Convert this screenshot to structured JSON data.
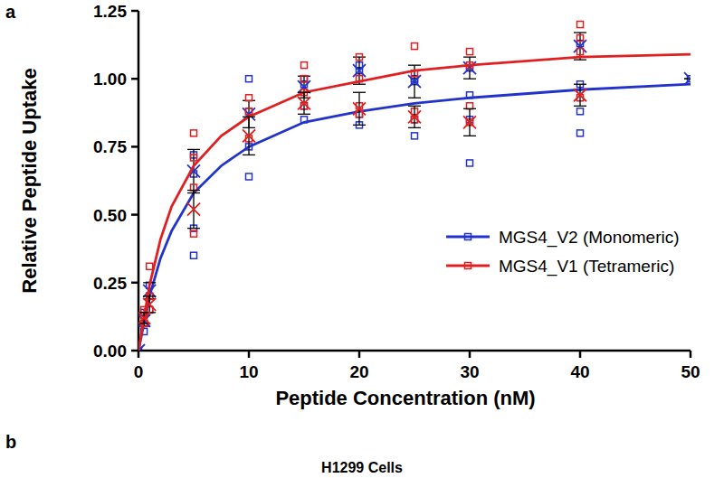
{
  "chart_data": {
    "type": "scatter",
    "x_label": "Peptide Concentration (nM)",
    "y_label": "Relative Peptide Uptake",
    "annotations": [
      "a",
      "b",
      "H1299 Cells"
    ],
    "xlim": [
      0,
      50
    ],
    "xticks": [
      0,
      10,
      20,
      30,
      40,
      50
    ],
    "ylim": [
      0,
      1.25
    ],
    "yticks": [
      {
        "value": 0,
        "label": "0.00"
      },
      {
        "value": 0.25,
        "label": "0.25"
      },
      {
        "value": 0.5,
        "label": "0.50"
      },
      {
        "value": 0.75,
        "label": "0.75"
      },
      {
        "value": 1.0,
        "label": "1.00"
      },
      {
        "value": 1.25,
        "label": "1.25"
      }
    ],
    "legend": "lower right",
    "grid": false,
    "series": [
      {
        "name": "MGS4_V2 (Monomeric)",
        "color": "#2233cc",
        "marker": "square",
        "line_style": "solid",
        "x": [
          0,
          0.5,
          1,
          5,
          10,
          15,
          20,
          25,
          30,
          40,
          50
        ],
        "values": [
          0.0,
          0.11,
          0.22,
          0.66,
          0.87,
          0.97,
          1.03,
          0.99,
          1.04,
          1.12,
          1.0
        ],
        "errors": [
          0.0,
          0.02,
          0.03,
          0.08,
          0.05,
          0.04,
          0.05,
          0.06,
          0.04,
          0.05,
          0.0
        ],
        "replicates": [
          [
            0.0
          ],
          [
            0.07,
            0.1,
            0.14
          ],
          [
            0.15,
            0.2,
            0.24
          ],
          [
            0.35,
            0.45,
            0.65,
            0.72
          ],
          [
            0.64,
            0.75,
            0.88,
            1.0
          ],
          [
            0.85,
            0.9,
            0.98,
            1.0
          ],
          [
            0.83,
            0.87,
            1.03,
            1.05
          ],
          [
            0.79,
            0.85,
            0.99,
            1.0
          ],
          [
            0.69,
            0.85,
            0.94,
            1.04
          ],
          [
            0.8,
            0.88,
            0.98,
            1.13
          ],
          [
            1.0
          ]
        ],
        "fit": {
          "x": [
            0,
            1,
            2,
            3,
            5,
            7.5,
            10,
            15,
            20,
            25,
            30,
            40,
            50
          ],
          "values": [
            0.0,
            0.2,
            0.34,
            0.44,
            0.58,
            0.68,
            0.75,
            0.84,
            0.88,
            0.91,
            0.93,
            0.96,
            0.98
          ]
        }
      },
      {
        "name": "MGS4_V1 (Tetrameric)",
        "color": "#e02020",
        "marker": "square",
        "line_style": "solid",
        "x": [
          0.5,
          1,
          5,
          10,
          15,
          20,
          25,
          30,
          40
        ],
        "values": [
          0.12,
          0.17,
          0.52,
          0.79,
          0.91,
          0.89,
          0.86,
          0.84,
          0.94
        ],
        "errors": [
          0.02,
          0.03,
          0.07,
          0.07,
          0.04,
          0.06,
          0.04,
          0.05,
          0.04
        ],
        "replicates": [
          [
            0.1,
            0.13,
            0.15
          ],
          [
            0.15,
            0.2,
            0.31
          ],
          [
            0.43,
            0.6,
            0.71,
            0.8
          ],
          [
            0.78,
            0.88,
            0.93
          ],
          [
            0.9,
            0.95,
            1.0,
            1.05
          ],
          [
            0.87,
            0.9,
            1.0,
            1.08
          ],
          [
            0.85,
            0.88,
            1.02,
            1.12
          ],
          [
            0.84,
            0.9,
            1.05,
            1.1
          ],
          [
            0.93,
            1.1,
            1.15,
            1.2
          ]
        ],
        "fit": {
          "x": [
            0,
            1,
            2,
            3,
            5,
            7.5,
            10,
            15,
            20,
            25,
            30,
            40,
            50
          ],
          "values": [
            0.0,
            0.24,
            0.41,
            0.53,
            0.68,
            0.79,
            0.86,
            0.95,
            0.99,
            1.03,
            1.05,
            1.08,
            1.09
          ]
        }
      }
    ]
  }
}
